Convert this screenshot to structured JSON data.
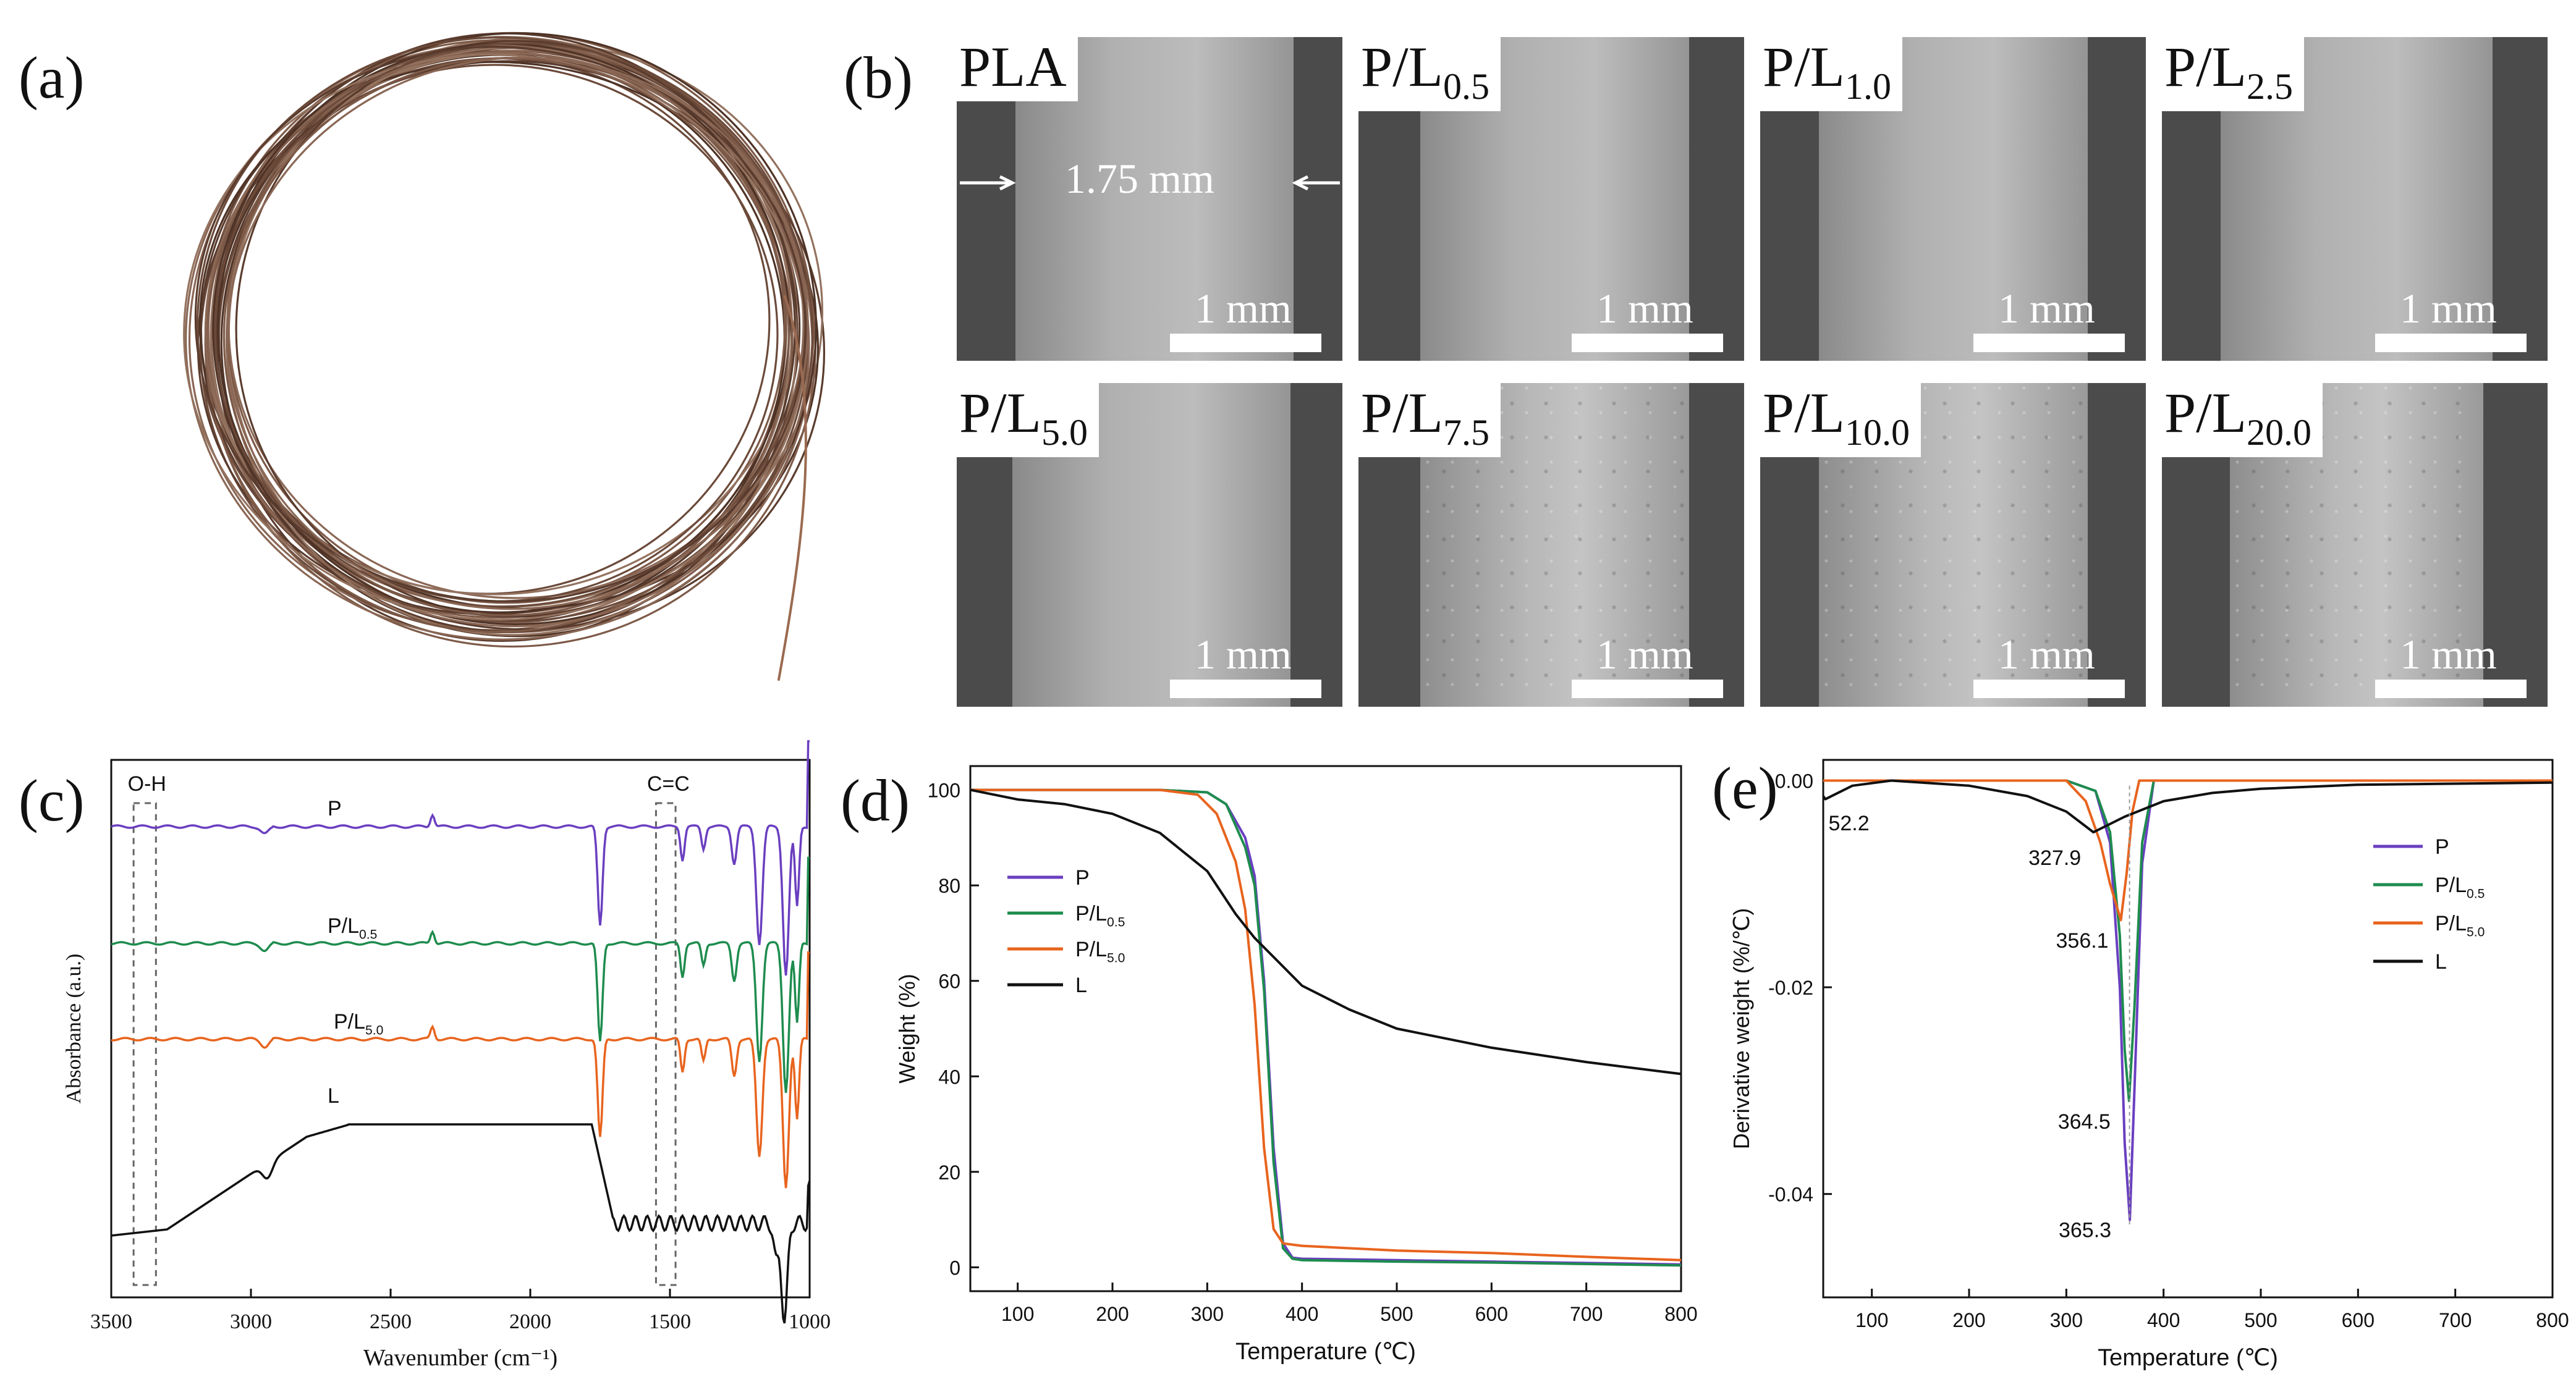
{
  "panels": {
    "a": "(a)",
    "b": "(b)",
    "c": "(c)",
    "d": "(d)",
    "e": "(e)"
  },
  "sem": {
    "scale_label": "1 mm",
    "diameter_label": "1.75 mm",
    "images": [
      {
        "base": "PLA",
        "sub": ""
      },
      {
        "base": "P/L",
        "sub": "0.5"
      },
      {
        "base": "P/L",
        "sub": "1.0"
      },
      {
        "base": "P/L",
        "sub": "2.5"
      },
      {
        "base": "P/L",
        "sub": "5.0"
      },
      {
        "base": "P/L",
        "sub": "7.5"
      },
      {
        "base": "P/L",
        "sub": "10.0"
      },
      {
        "base": "P/L",
        "sub": "20.0"
      }
    ]
  },
  "chart_data": [
    {
      "type": "line",
      "panel": "c",
      "xlabel": "Wavenumber (cm⁻¹)",
      "ylabel": "Absorbance (a.u.)",
      "xlim": [
        3500,
        1000
      ],
      "xticks": [
        3500,
        3000,
        2500,
        2000,
        1500,
        1000
      ],
      "annotations": [
        "O-H",
        "C=C"
      ],
      "series": [
        {
          "name": "P",
          "label_base": "P",
          "label_sub": "",
          "color": "#6a3fc0"
        },
        {
          "name": "P/L0.5",
          "label_base": "P/L",
          "label_sub": "0.5",
          "color": "#1e8c4e"
        },
        {
          "name": "P/L5.0",
          "label_base": "P/L",
          "label_sub": "5.0",
          "color": "#e8641e"
        },
        {
          "name": "L",
          "label_base": "L",
          "label_sub": "",
          "color": "#111111"
        }
      ]
    },
    {
      "type": "line",
      "panel": "d",
      "xlabel": "Temperature (℃)",
      "ylabel": "Weight (%)",
      "xlim": [
        50,
        800
      ],
      "ylim": [
        -5,
        105
      ],
      "xticks": [
        100,
        200,
        300,
        400,
        500,
        600,
        700,
        800
      ],
      "yticks": [
        0,
        20,
        40,
        60,
        80,
        100
      ],
      "legend": "left",
      "series": [
        {
          "name": "P",
          "label_base": "P",
          "label_sub": "",
          "color": "#6a3fc0",
          "x": [
            50,
            250,
            300,
            320,
            340,
            350,
            360,
            370,
            380,
            390,
            400,
            500,
            600,
            700,
            800
          ],
          "y": [
            100,
            100,
            99.5,
            97,
            90,
            82,
            60,
            25,
            5,
            2,
            1.8,
            1.5,
            1.2,
            0.9,
            0.6
          ]
        },
        {
          "name": "P/L0.5",
          "label_base": "P/L",
          "label_sub": "0.5",
          "color": "#1e8c4e",
          "x": [
            50,
            250,
            300,
            320,
            340,
            350,
            360,
            370,
            380,
            390,
            400,
            500,
            600,
            700,
            800
          ],
          "y": [
            100,
            100,
            99.5,
            97,
            88,
            80,
            58,
            22,
            4,
            1.8,
            1.5,
            1.2,
            1.0,
            0.7,
            0.4
          ]
        },
        {
          "name": "P/L5.0",
          "label_base": "P/L",
          "label_sub": "5.0",
          "color": "#e8641e",
          "x": [
            50,
            250,
            290,
            310,
            330,
            340,
            350,
            360,
            370,
            380,
            400,
            500,
            600,
            700,
            800
          ],
          "y": [
            100,
            100,
            99,
            95,
            85,
            75,
            55,
            25,
            8,
            5,
            4.5,
            3.5,
            3,
            2.2,
            1.5
          ]
        },
        {
          "name": "L",
          "label_base": "L",
          "label_sub": "",
          "color": "#111111",
          "x": [
            50,
            100,
            150,
            200,
            250,
            300,
            330,
            350,
            380,
            400,
            450,
            500,
            600,
            700,
            800
          ],
          "y": [
            100,
            98,
            97,
            95,
            91,
            83,
            74,
            69,
            63,
            59,
            54,
            50,
            46,
            43,
            40.5
          ]
        }
      ]
    },
    {
      "type": "line",
      "panel": "e",
      "xlabel": "Temperature (℃)",
      "ylabel": "Derivative weight (%/℃)",
      "xlim": [
        50,
        800
      ],
      "ylim": [
        -0.05,
        0.002
      ],
      "xticks": [
        100,
        200,
        300,
        400,
        500,
        600,
        700,
        800
      ],
      "yticks": [
        0.0,
        -0.02,
        -0.04
      ],
      "ytick_labels": [
        "0.00",
        "-0.02",
        "-0.04"
      ],
      "annotations": [
        "52.2",
        "327.9",
        "356.1",
        "364.5",
        "365.3"
      ],
      "series": [
        {
          "name": "P",
          "label_base": "P",
          "label_sub": "",
          "color": "#6a3fc0",
          "x": [
            50,
            300,
            330,
            345,
            355,
            360,
            365.3,
            370,
            378,
            390,
            800
          ],
          "y": [
            0,
            0,
            -0.001,
            -0.006,
            -0.02,
            -0.035,
            -0.0425,
            -0.03,
            -0.008,
            0,
            0
          ]
        },
        {
          "name": "P/L0.5",
          "label_base": "P/L",
          "label_sub": "0.5",
          "color": "#1e8c4e",
          "x": [
            50,
            300,
            330,
            345,
            355,
            360,
            364.5,
            370,
            378,
            390,
            800
          ],
          "y": [
            0,
            0,
            -0.001,
            -0.005,
            -0.015,
            -0.026,
            -0.031,
            -0.022,
            -0.006,
            0,
            0
          ]
        },
        {
          "name": "P/L5.0",
          "label_base": "P/L",
          "label_sub": "5.0",
          "color": "#e8641e",
          "x": [
            50,
            300,
            320,
            335,
            345,
            356.1,
            362,
            368,
            375,
            800
          ],
          "y": [
            0,
            0,
            -0.002,
            -0.006,
            -0.01,
            -0.0135,
            -0.009,
            -0.003,
            0,
            0
          ]
        },
        {
          "name": "L",
          "label_base": "L",
          "label_sub": "",
          "color": "#111111",
          "x": [
            50,
            52.2,
            80,
            120,
            200,
            260,
            300,
            327.9,
            360,
            400,
            450,
            500,
            600,
            800
          ],
          "y": [
            -0.0015,
            -0.0018,
            -0.0005,
            0,
            -0.0005,
            -0.0015,
            -0.003,
            -0.005,
            -0.0035,
            -0.002,
            -0.0012,
            -0.0008,
            -0.0004,
            -0.0002
          ]
        }
      ]
    }
  ]
}
